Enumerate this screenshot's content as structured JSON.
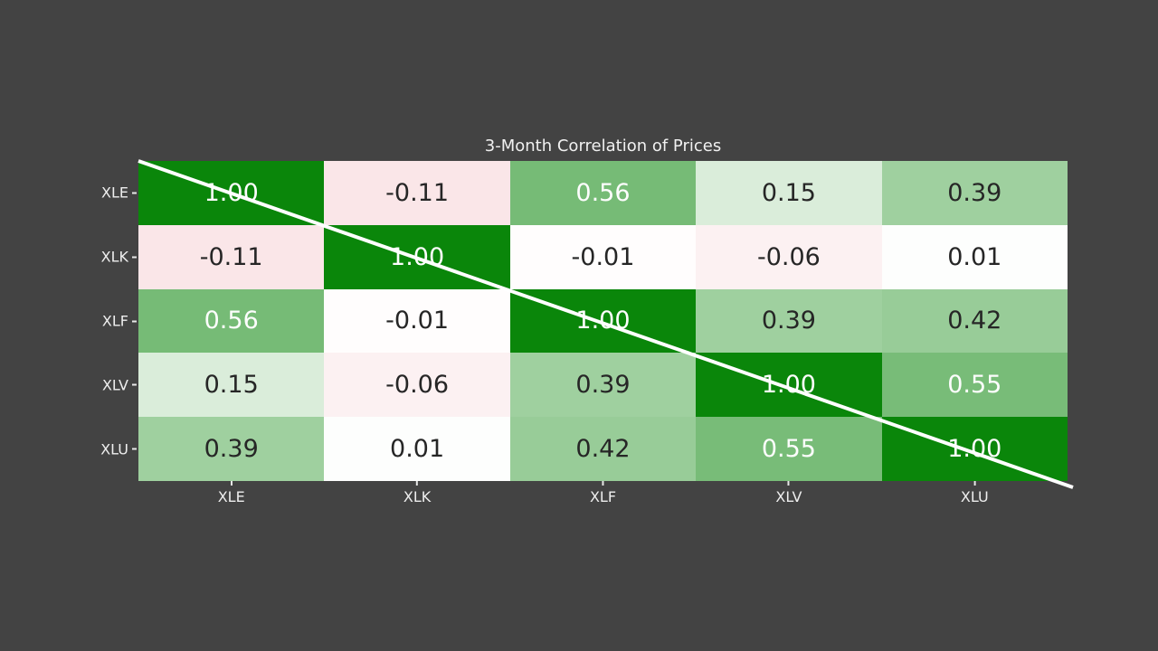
{
  "background_color": "#434343",
  "text_colors": {
    "title": "#f0f0f0",
    "tick_label": "#eeeeee",
    "tick_mark": "#e8e8e8",
    "cell_dark": "#262626",
    "cell_light": "#fdfdfd"
  },
  "chart_data": {
    "type": "heatmap",
    "title": "3-Month Correlation of Prices",
    "x_categories": [
      "XLE",
      "XLK",
      "XLF",
      "XLV",
      "XLU"
    ],
    "y_categories": [
      "XLE",
      "XLK",
      "XLF",
      "XLV",
      "XLU"
    ],
    "matrix": [
      [
        1.0,
        -0.11,
        0.56,
        0.15,
        0.39
      ],
      [
        -0.11,
        1.0,
        -0.01,
        -0.06,
        0.01
      ],
      [
        0.56,
        -0.01,
        1.0,
        0.39,
        0.42
      ],
      [
        0.15,
        -0.06,
        0.39,
        1.0,
        0.55
      ],
      [
        0.39,
        0.01,
        0.42,
        0.55,
        1.0
      ]
    ],
    "value_format_decimals": 2,
    "vmin": -1,
    "vmax": 1,
    "colormap": {
      "negative": "#d11a2d",
      "mid": "#ffffff",
      "positive": "#0a860a"
    },
    "cell_text_light_threshold": 0.5,
    "diagonal_line_color": "#ffffff",
    "grid": false,
    "legend": false
  }
}
